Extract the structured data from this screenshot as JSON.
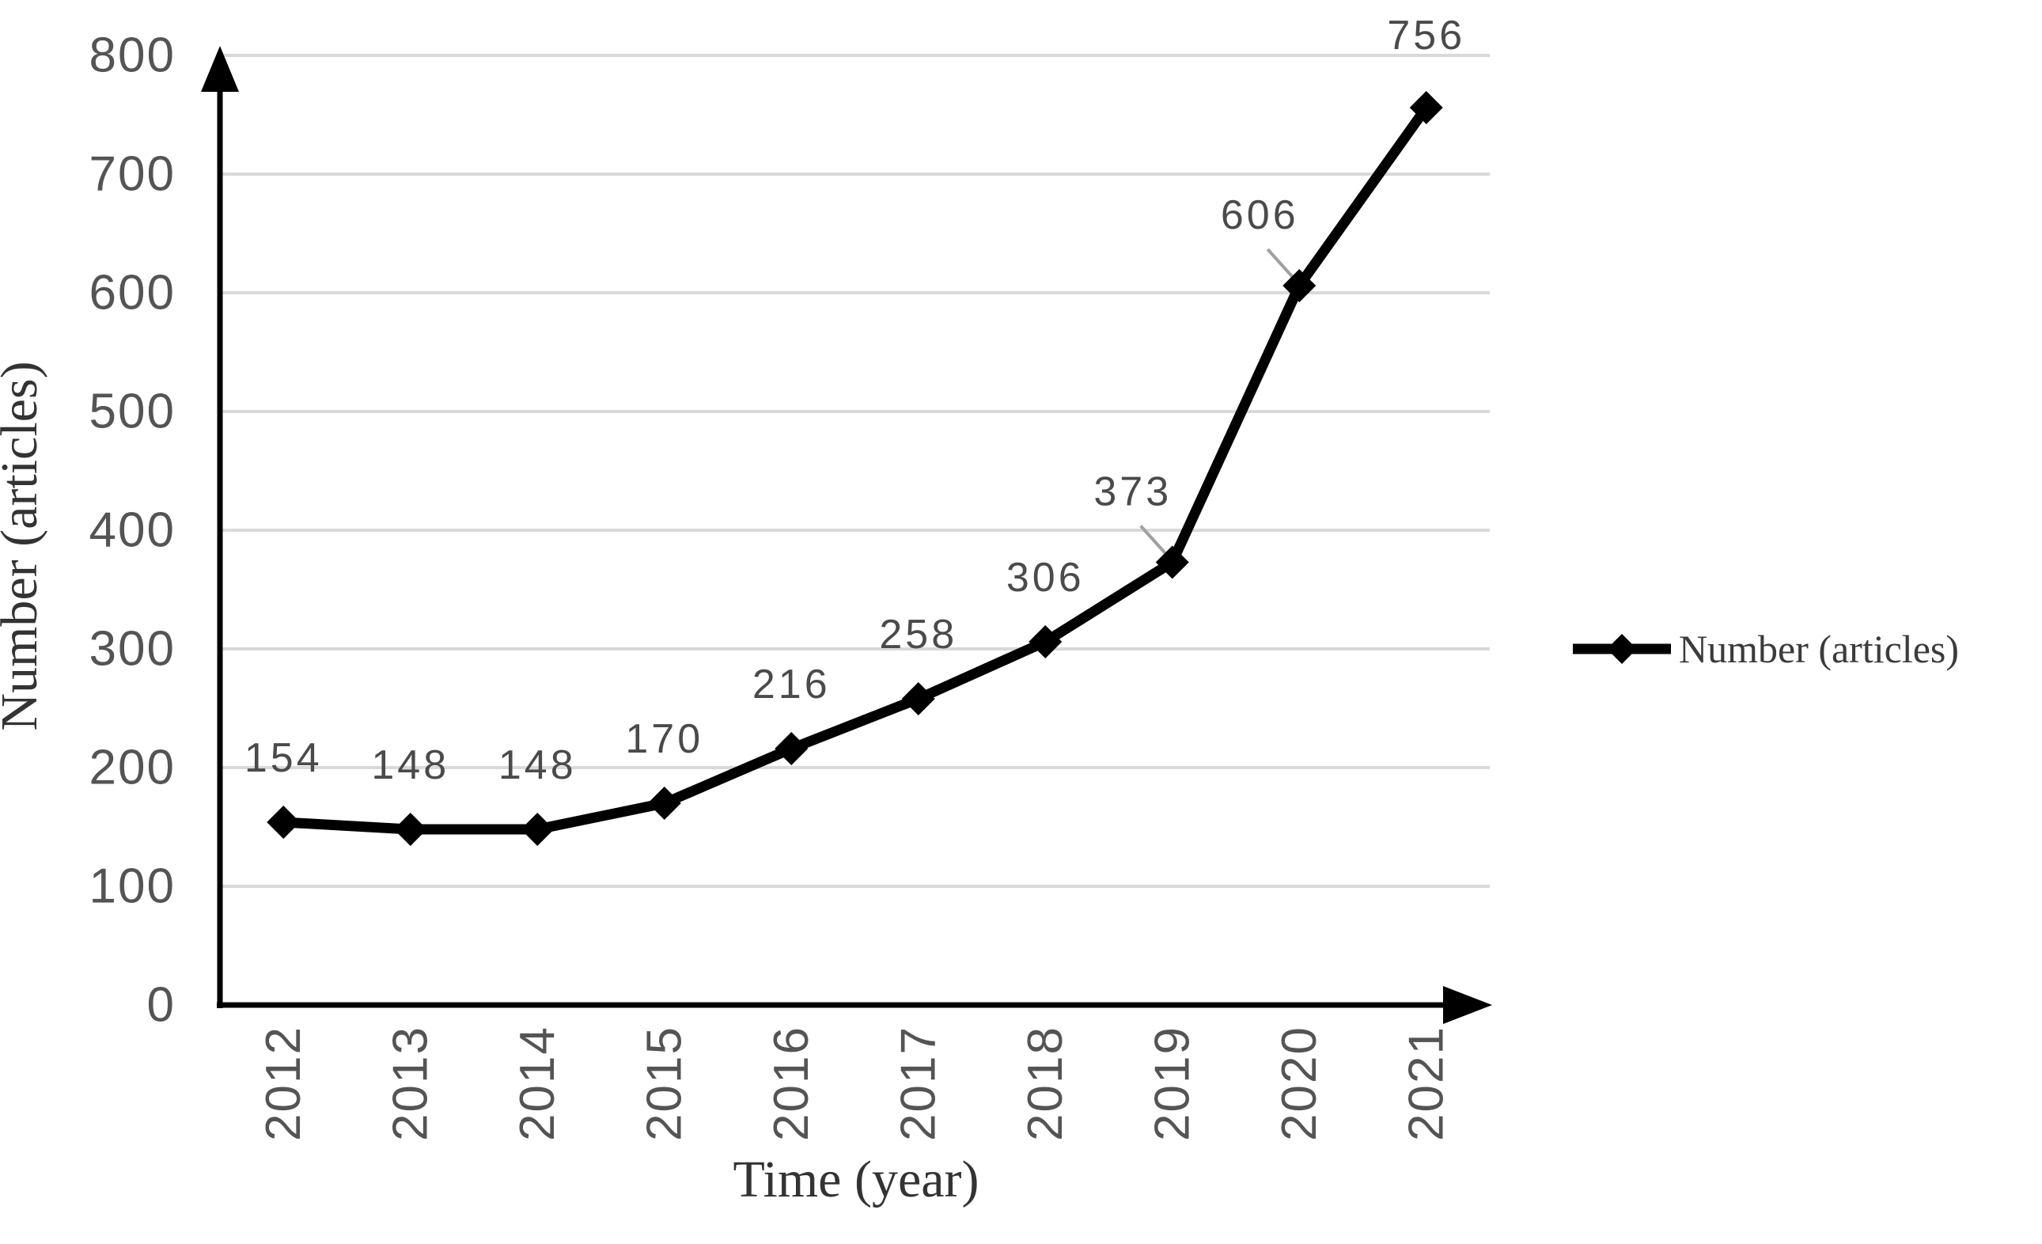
{
  "chart_data": {
    "type": "line",
    "categories": [
      "2012",
      "2013",
      "2014",
      "2015",
      "2016",
      "2017",
      "2018",
      "2019",
      "2020",
      "2021"
    ],
    "series": [
      {
        "name": "Number (articles)",
        "values": [
          154,
          148,
          148,
          170,
          216,
          258,
          306,
          373,
          606,
          756
        ]
      }
    ],
    "xlabel": "Time (year)",
    "ylabel": "Number (articles)",
    "ylim": [
      0,
      800
    ],
    "y_ticks": [
      0,
      100,
      200,
      300,
      400,
      500,
      600,
      700,
      800
    ],
    "grid": "horizontal-only",
    "legend_position": "right-middle",
    "marker_shape": "diamond",
    "data_labels_shown": true,
    "colors": {
      "series_line": "#000000",
      "marker": "#000000",
      "gridline": "#d9d9d9",
      "tick_label": "#545454",
      "data_label": "#4a4a4a",
      "axis_title": "#333333",
      "legend_text": "#3b3b3b",
      "leader_line": "#a0a0a0",
      "background": "#ffffff"
    }
  }
}
